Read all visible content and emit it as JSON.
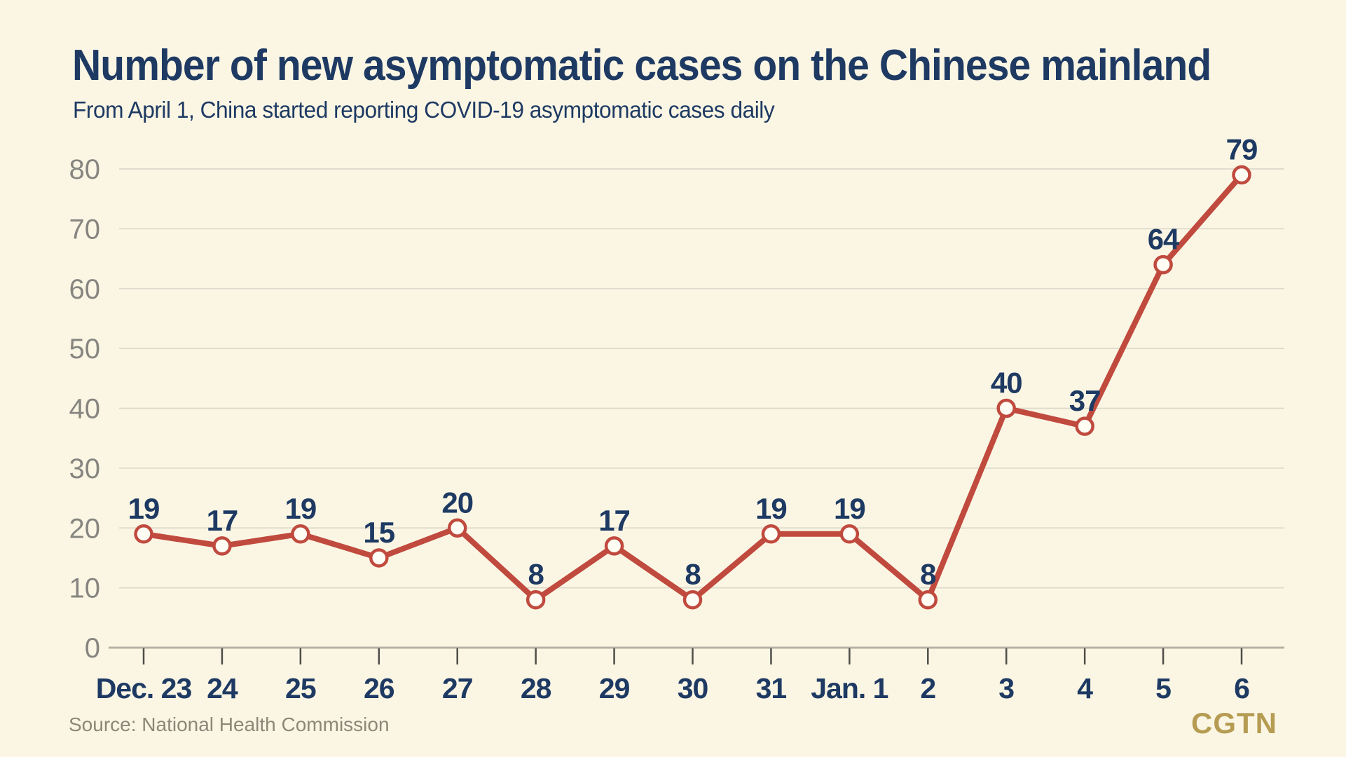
{
  "header": {
    "title": "Number of new asymptomatic cases on the Chinese mainland",
    "subtitle": "From April 1, China started reporting COVID-19 asymptomatic cases daily"
  },
  "footer": {
    "source": "Source: National Health Commission",
    "logo": "CGTN"
  },
  "colors": {
    "background": "#fbf6e4",
    "navy_text": "#1e3a63",
    "line": "#c04a3e",
    "marker_fill": "#fffdf4",
    "grid": "#ddd9cb",
    "axis": "#b5b1a5",
    "tick": "#4f4d48",
    "y_label": "#878580",
    "source_text": "#8d8779",
    "logo_gold": "#b59c52"
  },
  "chart_data": {
    "type": "line",
    "title": "Number of new asymptomatic cases on the Chinese mainland",
    "subtitle": "From April 1, China started reporting COVID-19 asymptomatic cases daily",
    "categories": [
      "Dec. 23",
      "24",
      "25",
      "26",
      "27",
      "28",
      "29",
      "30",
      "31",
      "Jan. 1",
      "2",
      "3",
      "4",
      "5",
      "6"
    ],
    "values": [
      19,
      17,
      19,
      15,
      20,
      8,
      17,
      8,
      19,
      19,
      8,
      40,
      37,
      64,
      79
    ],
    "xlabel": "",
    "ylabel": "",
    "ylim": [
      0,
      80
    ],
    "yticks": [
      0,
      10,
      20,
      30,
      40,
      50,
      60,
      70,
      80
    ],
    "grid": true,
    "legend": "none",
    "marker": "open-circle",
    "data_labels": true,
    "source": "Source: National Health Commission"
  }
}
